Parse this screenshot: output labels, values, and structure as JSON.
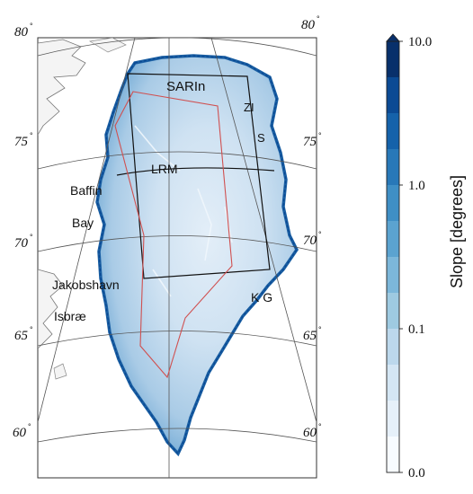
{
  "map": {
    "region_labels": {
      "sarin": "SARIn",
      "lrm": "LRM",
      "zi": "ZI",
      "s": "S",
      "kg": "K G",
      "baffin": "Baffin",
      "bay": "Bay",
      "jakobshavn": "Jakobshavn",
      "isbrae": "Isbræ"
    },
    "graticule_labels": {
      "lat80_left": "80",
      "lat80_right": "80",
      "lat75_left": "75",
      "lat75_right": "75",
      "lat70_left": "70",
      "lat70_right": "70",
      "lat65_left": "65",
      "lat65_right": "65",
      "lat60_left": "60",
      "lat60_right": "60"
    }
  },
  "colorbar": {
    "title": "Slope [degrees]",
    "ticks": [
      "10.0",
      "1.0",
      "0.1",
      "0.0"
    ],
    "colors": [
      "#08306b",
      "#0b4a94",
      "#1562aa",
      "#2878b8",
      "#3f8fc5",
      "#5ba3d0",
      "#7cb7da",
      "#9ecae1",
      "#bcd8ec",
      "#d4e6f4",
      "#e6f0f9",
      "#f7fbff"
    ],
    "scale": "log"
  }
}
